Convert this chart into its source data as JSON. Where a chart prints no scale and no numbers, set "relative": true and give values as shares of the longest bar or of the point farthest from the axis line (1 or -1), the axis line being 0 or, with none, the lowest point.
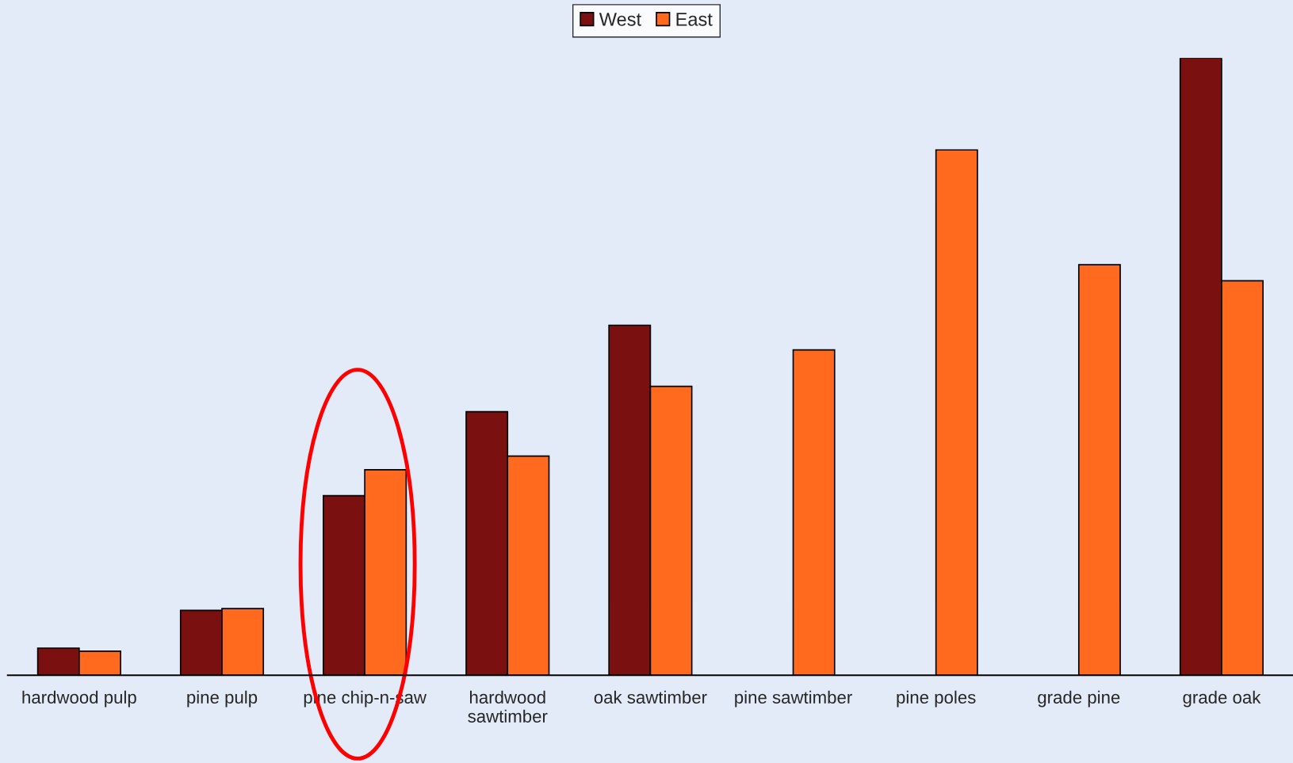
{
  "chart_data": {
    "type": "bar",
    "relative": true,
    "legend": "top",
    "categories": [
      "hardwood pulp",
      "pine pulp",
      "pine chip-n-saw",
      "hardwood sawtimber",
      "oak sawtimber",
      "pine sawtimber",
      "pine poles",
      "grade pine",
      "grade oak"
    ],
    "series": [
      {
        "name": "West",
        "color": "#7a1010",
        "values": [
          0.044,
          0.105,
          0.291,
          0.427,
          0.567,
          null,
          null,
          null,
          1
        ]
      },
      {
        "name": "East",
        "color": "#ff6a1e",
        "values": [
          0.039,
          0.108,
          0.333,
          0.355,
          0.468,
          0.527,
          0.851,
          0.665,
          0.639
        ]
      }
    ],
    "grid": false
  }
}
